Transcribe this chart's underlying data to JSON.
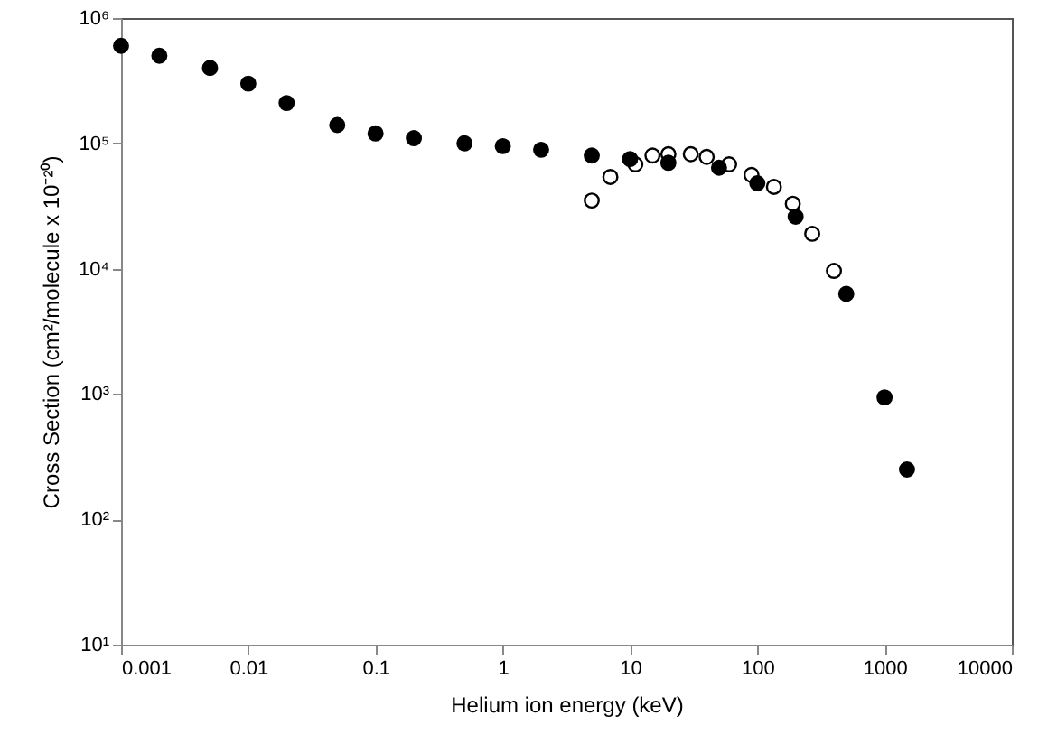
{
  "chart_data": {
    "type": "scatter",
    "xlabel": "Helium ion energy (keV)",
    "ylabel": "Cross Section (cm²/molecule x 10⁻²⁰)",
    "log": "xy",
    "grid": false,
    "marker": "circle",
    "xlim": [
      0.001,
      10000
    ],
    "xticks": [
      0.001,
      0.01,
      0.1,
      1,
      10,
      100,
      1000,
      10000
    ],
    "ylim": [
      10,
      1000000
    ],
    "yticks": [
      {
        "value": 10,
        "label": "10¹"
      },
      {
        "value": 100,
        "label": "10²"
      },
      {
        "value": 1000,
        "label": "10³"
      },
      {
        "value": 10000,
        "label": "10⁴"
      },
      {
        "value": 100000,
        "label": "10⁵"
      },
      {
        "value": 1000000,
        "label": "10⁶"
      }
    ],
    "series": [
      {
        "color": "#000000",
        "x": [
          0.001,
          0.002,
          0.005,
          0.01,
          0.02,
          0.05,
          0.1,
          0.2,
          0.5,
          1,
          2,
          5,
          10,
          20,
          50,
          100,
          200,
          500,
          1000,
          1500
        ],
        "values": [
          600000,
          500000,
          400000,
          300000,
          210000,
          140000,
          120000,
          110000,
          100000,
          95000,
          89000,
          80000,
          75000,
          70000,
          64000,
          48000,
          26000,
          6300,
          940,
          250
        ]
      },
      {
        "color": "#ffffff",
        "x": [
          5,
          7,
          11,
          15,
          20,
          30,
          40,
          60,
          90,
          135,
          190,
          270,
          400
        ],
        "values": [
          35000,
          54000,
          68000,
          80000,
          82000,
          82000,
          78000,
          68000,
          56000,
          45000,
          33000,
          19000,
          9600
        ]
      }
    ]
  }
}
